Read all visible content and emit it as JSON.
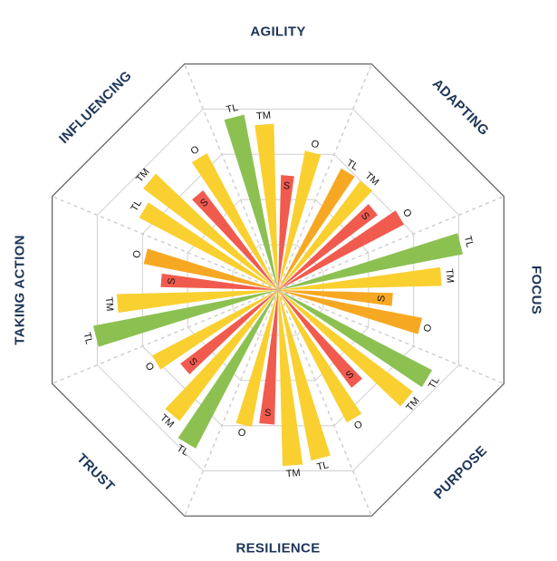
{
  "chart_data": {
    "type": "radial-bar",
    "title": "",
    "rmax": 100,
    "ring_values": [
      20,
      40,
      60,
      80,
      100
    ],
    "grid": true,
    "legend": "none",
    "series_labels": [
      "TL",
      "TM",
      "S",
      "O"
    ],
    "colors": {
      "green": "#8cc152",
      "yellow": "#f9d030",
      "orange": "#f7a823",
      "red": "#f15b4e",
      "frame": "#666666",
      "grid": "#cfcfcf",
      "label": "#1d3557"
    },
    "categories": [
      {
        "name": "AGILITY",
        "bars": [
          {
            "label": "TL",
            "value": 73,
            "color": "#8cc152"
          },
          {
            "label": "TM",
            "value": 68,
            "color": "#f9d030"
          },
          {
            "label": "S",
            "value": 47,
            "color": "#f15b4e"
          },
          {
            "label": "O",
            "value": 58,
            "color": "#f9d030"
          }
        ]
      },
      {
        "name": "ADAPTING",
        "bars": [
          {
            "label": "TL",
            "value": 56,
            "color": "#f7a823"
          },
          {
            "label": "TM",
            "value": 56,
            "color": "#f9d030"
          },
          {
            "label": "S",
            "value": 51,
            "color": "#f15b4e"
          },
          {
            "label": "O",
            "value": 58,
            "color": "#f15b4e"
          }
        ]
      },
      {
        "name": "FOCUS",
        "bars": [
          {
            "label": "TL",
            "value": 77,
            "color": "#8cc152"
          },
          {
            "label": "TM",
            "value": 67,
            "color": "#f9d030"
          },
          {
            "label": "S",
            "value": 47,
            "color": "#f7a823"
          },
          {
            "label": "O",
            "value": 60,
            "color": "#f7a823"
          }
        ]
      },
      {
        "name": "PURPOSE",
        "bars": [
          {
            "label": "TL",
            "value": 71,
            "color": "#8cc152"
          },
          {
            "label": "TM",
            "value": 69,
            "color": "#f9d030"
          },
          {
            "label": "S",
            "value": 50,
            "color": "#f15b4e"
          },
          {
            "label": "O",
            "value": 61,
            "color": "#f9d030"
          }
        ]
      },
      {
        "name": "RESILIENCE",
        "bars": [
          {
            "label": "TL",
            "value": 71,
            "color": "#f9d030"
          },
          {
            "label": "TM",
            "value": 72,
            "color": "#f9d030"
          },
          {
            "label": "S",
            "value": 55,
            "color": "#f15b4e"
          },
          {
            "label": "O",
            "value": 57,
            "color": "#f9d030"
          }
        ]
      },
      {
        "name": "TRUST",
        "bars": [
          {
            "label": "TL",
            "value": 73,
            "color": "#8cc152"
          },
          {
            "label": "TM",
            "value": 67,
            "color": "#f9d030"
          },
          {
            "label": "S",
            "value": 50,
            "color": "#f15b4e"
          },
          {
            "label": "O",
            "value": 58,
            "color": "#f9d030"
          }
        ]
      },
      {
        "name": "TAKING ACTION",
        "bars": [
          {
            "label": "TL",
            "value": 77,
            "color": "#8cc152"
          },
          {
            "label": "TM",
            "value": 66,
            "color": "#f9d030"
          },
          {
            "label": "S",
            "value": 48,
            "color": "#f15b4e"
          },
          {
            "label": "O",
            "value": 56,
            "color": "#f7a823"
          }
        ]
      },
      {
        "name": "INFLUENCING",
        "bars": [
          {
            "label": "TL",
            "value": 64,
            "color": "#f9d030"
          },
          {
            "label": "TM",
            "value": 69,
            "color": "#f9d030"
          },
          {
            "label": "S",
            "value": 51,
            "color": "#f15b4e"
          },
          {
            "label": "O",
            "value": 63,
            "color": "#f9d030"
          }
        ]
      }
    ]
  }
}
